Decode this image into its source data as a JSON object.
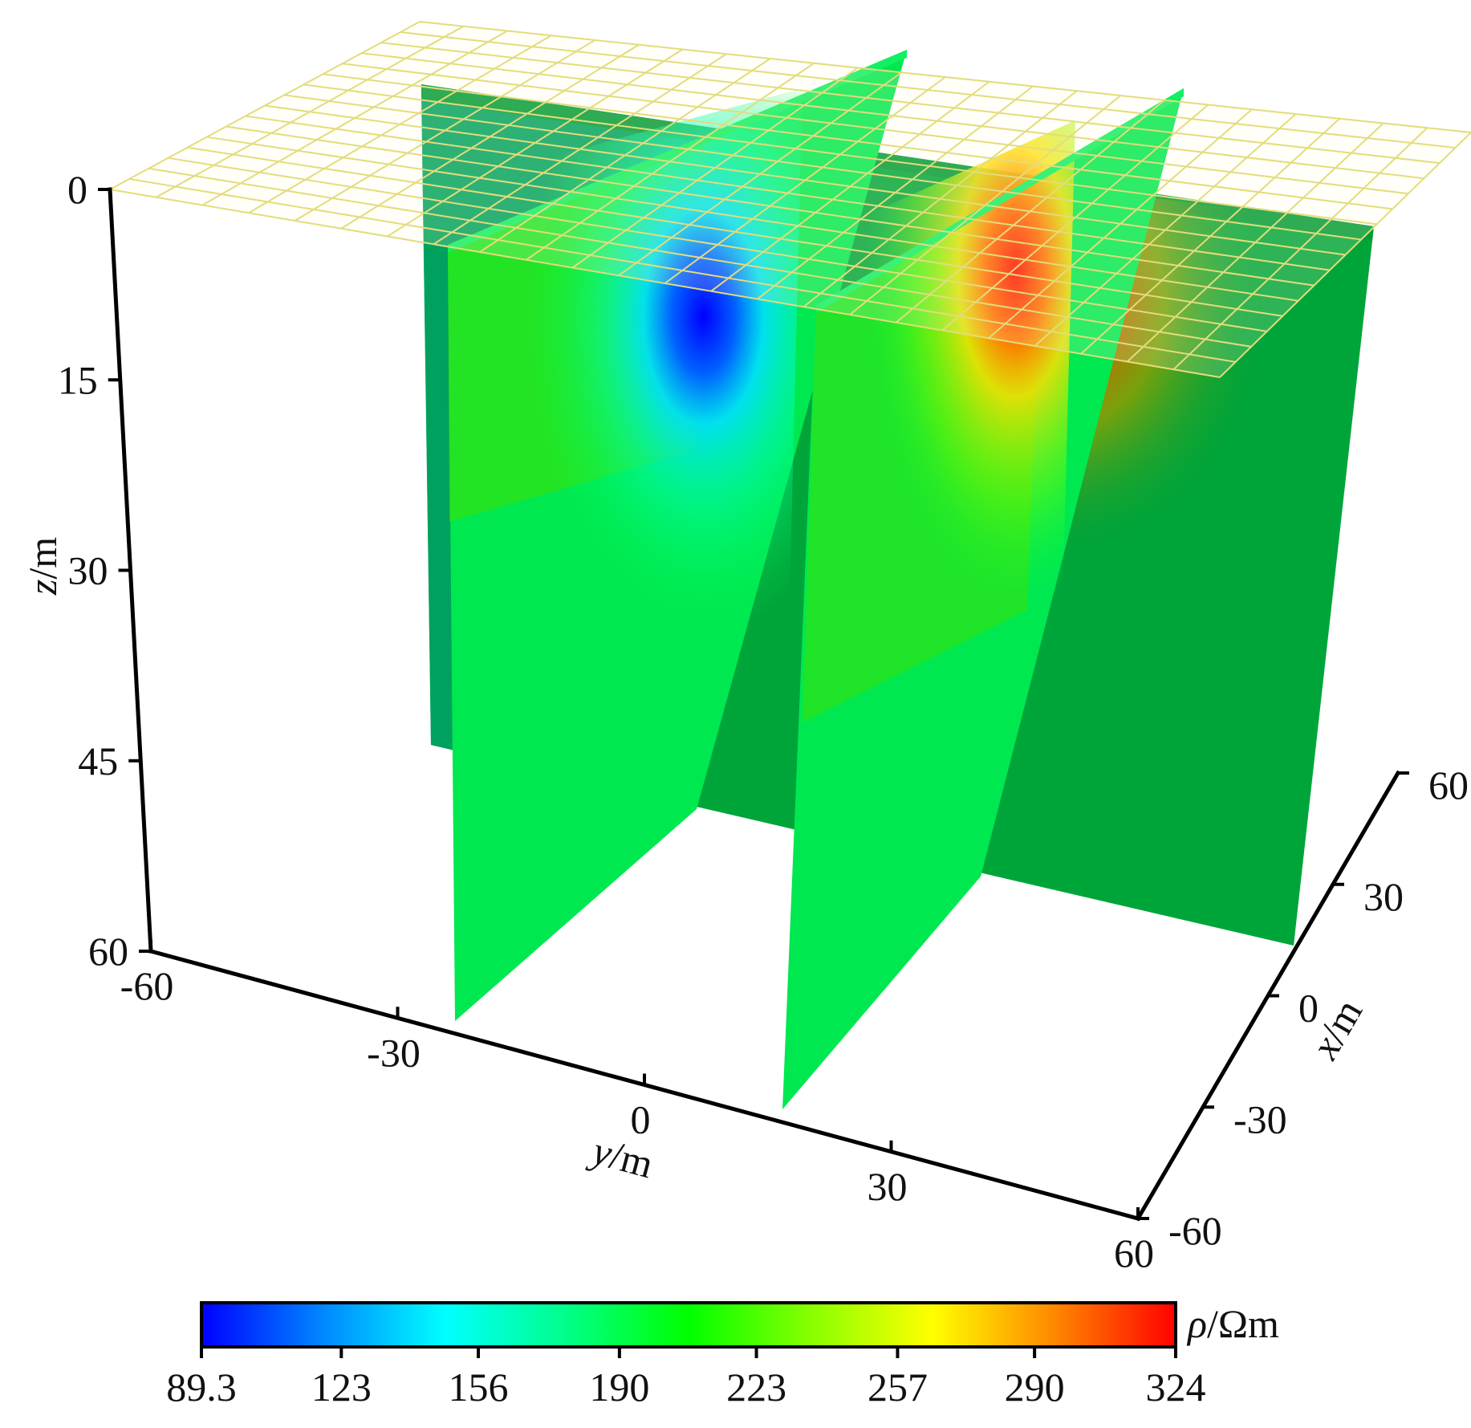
{
  "chart_data": {
    "type": "heatmap",
    "variant": "3d-orthogonal-slices",
    "title": "",
    "quantity": "resistivity",
    "axes": {
      "x": {
        "label_var": "x",
        "label_unit": "/m",
        "ticks": [
          "-60",
          "-30",
          "0",
          "30",
          "60"
        ],
        "range": [
          -60,
          60
        ]
      },
      "y": {
        "label_var": "y",
        "label_unit": "/m",
        "ticks": [
          "-60",
          "-30",
          "0",
          "30",
          "60"
        ],
        "range": [
          -60,
          60
        ]
      },
      "z": {
        "label_var": "z",
        "label_unit": "/m",
        "ticks": [
          "0",
          "15",
          "30",
          "45",
          "60"
        ],
        "range": [
          0,
          60
        ],
        "direction": "down"
      }
    },
    "slices": [
      {
        "name": "surface-plane",
        "orientation": "horizontal",
        "z": 0,
        "style": "grid-only"
      },
      {
        "name": "x-slice",
        "orientation": "vertical",
        "x": 0,
        "background_value": 200
      },
      {
        "name": "y-slice-left",
        "orientation": "vertical",
        "y": -20,
        "background_value": 210
      },
      {
        "name": "y-slice-right",
        "orientation": "vertical",
        "y": 20,
        "background_value": 210
      }
    ],
    "anomalies": [
      {
        "name": "low-resistivity-body",
        "center": {
          "x": 0,
          "y": -20,
          "z": 17
        },
        "value": 89.3
      },
      {
        "name": "high-resistivity-body",
        "center": {
          "x": 0,
          "y": 20,
          "z": 18
        },
        "value": 324
      }
    ],
    "colorbar": {
      "label_var": "ρ",
      "label_unit": "/Ωm",
      "ticks": [
        "89.3",
        "123",
        "156",
        "190",
        "223",
        "257",
        "290",
        "324"
      ],
      "range": [
        89.3,
        324
      ],
      "colormap": [
        "#0000ff",
        "#0088ff",
        "#00ffff",
        "#00ff88",
        "#00ff00",
        "#88ff00",
        "#ffff00",
        "#ff8800",
        "#ff0000"
      ]
    },
    "grid": true
  }
}
